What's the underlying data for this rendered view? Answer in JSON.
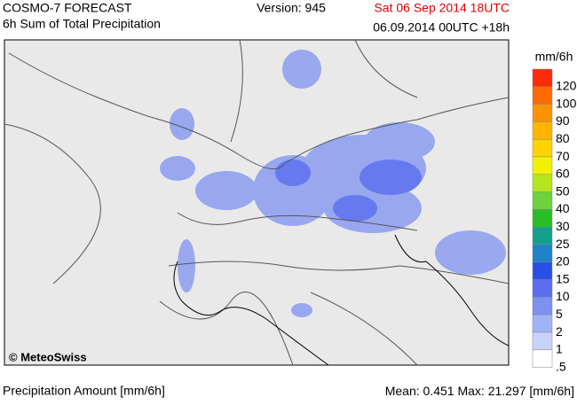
{
  "header": {
    "title": "COSMO-7 FORECAST",
    "subtitle": "6h Sum of Total Precipitation",
    "version": "Version: 945",
    "valid_time": "Sat 06 Sep 2014 18UTC",
    "run_time": "06.09.2014 00UTC +18h"
  },
  "map": {
    "copyright": "© MeteoSwiss"
  },
  "legend": {
    "unit": "mm/6h",
    "entries": [
      {
        "label": "120",
        "color": "#ff2a0a"
      },
      {
        "label": "100",
        "color": "#ff6a00"
      },
      {
        "label": "90",
        "color": "#ff9200"
      },
      {
        "label": "80",
        "color": "#ffb400"
      },
      {
        "label": "70",
        "color": "#ffd200"
      },
      {
        "label": "60",
        "color": "#f2f200"
      },
      {
        "label": "50",
        "color": "#b4e61e"
      },
      {
        "label": "40",
        "color": "#6ed23c"
      },
      {
        "label": "30",
        "color": "#28be28"
      },
      {
        "label": "25",
        "color": "#14a08c"
      },
      {
        "label": "20",
        "color": "#1e82c8"
      },
      {
        "label": "15",
        "color": "#2850e6"
      },
      {
        "label": "10",
        "color": "#5a6ef0"
      },
      {
        "label": "5",
        "color": "#7d91f0"
      },
      {
        "label": "2",
        "color": "#a0b4f5"
      },
      {
        "label": "1",
        "color": "#c8d2fa"
      },
      {
        "label": ".5",
        "color": "#ffffff"
      }
    ]
  },
  "footer": {
    "quantity": "Precipitation Amount [mm/6h]",
    "mean_label": "Mean:",
    "mean": "0.451",
    "max_label": "Max:",
    "max": "21.297",
    "unit": "[mm/6h]"
  }
}
